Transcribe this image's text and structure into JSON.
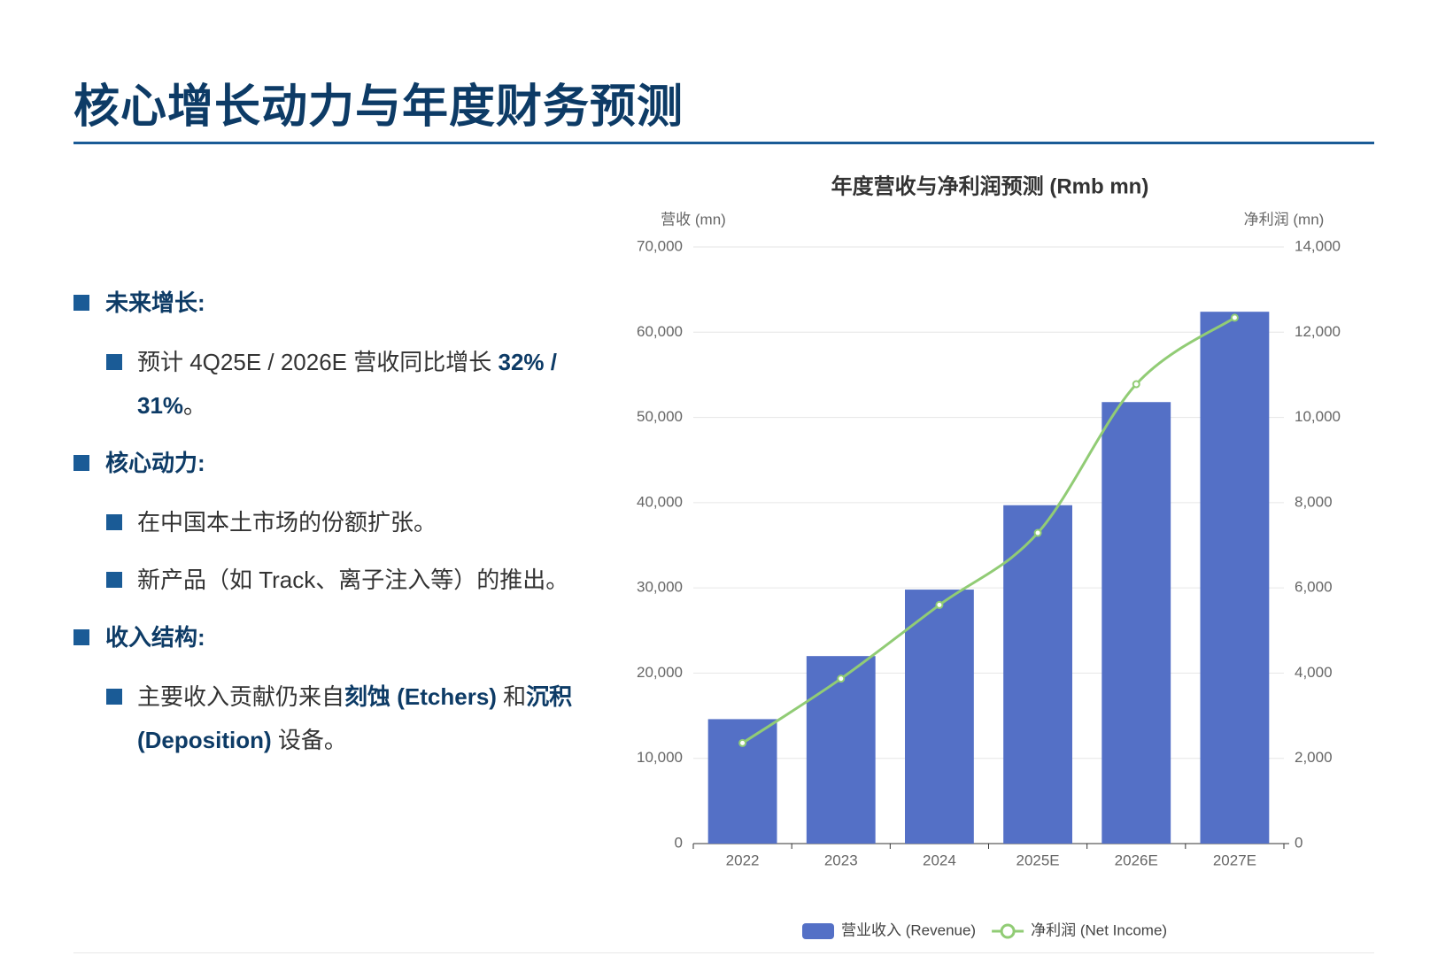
{
  "header": {
    "title": "核心增长动力与年度财务预测"
  },
  "bullets": [
    {
      "level": 1,
      "segments": [
        {
          "text": "未来增长:",
          "bold": true
        }
      ]
    },
    {
      "level": 2,
      "segments": [
        {
          "text": "预计 4Q25E / 2026E 营收同比增长 ",
          "bold": false
        },
        {
          "text": "32% / 31%",
          "bold": true
        },
        {
          "text": "。",
          "bold": false
        }
      ]
    },
    {
      "level": 1,
      "segments": [
        {
          "text": "核心动力:",
          "bold": true
        }
      ]
    },
    {
      "level": 2,
      "segments": [
        {
          "text": "在中国本土市场的份额扩张。",
          "bold": false
        }
      ]
    },
    {
      "level": 2,
      "segments": [
        {
          "text": "新产品（如 Track、离子注入等）的推出。",
          "bold": false
        }
      ]
    },
    {
      "level": 1,
      "segments": [
        {
          "text": "收入结构:",
          "bold": true
        }
      ]
    },
    {
      "level": 2,
      "segments": [
        {
          "text": "主要收入贡献仍来自",
          "bold": false
        },
        {
          "text": "刻蚀 (Etchers)",
          "bold": true
        },
        {
          "text": " 和",
          "bold": false
        },
        {
          "text": "沉积 (Deposition)",
          "bold": true
        },
        {
          "text": " 设备。",
          "bold": false
        }
      ]
    }
  ],
  "chart_data": {
    "type": "combo",
    "title": "年度营收与净利润预测 (Rmb mn)",
    "y_label": "营收 (mn)",
    "y2_label": "净利润 (mn)",
    "categories": [
      "2022",
      "2023",
      "2024",
      "2025E",
      "2026E",
      "2027E"
    ],
    "series": [
      {
        "name": "营业收入 (Revenue)",
        "type": "bar",
        "color": "#5470c6",
        "values": [
          14600,
          22000,
          29800,
          39700,
          51800,
          62400
        ]
      },
      {
        "name": "净利润 (Net Income)",
        "type": "line",
        "axis": "y2",
        "color": "#91cc75",
        "values": [
          2360,
          3870,
          5600,
          7290,
          10780,
          12340
        ]
      }
    ],
    "ylim": [
      0,
      70000
    ],
    "yticks": [
      0,
      {
        "value": 10000,
        "label": "10,000"
      },
      {
        "value": 20000,
        "label": "20,000"
      },
      {
        "value": 30000,
        "label": "30,000"
      },
      {
        "value": 40000,
        "label": "40,000"
      },
      {
        "value": 50000,
        "label": "50,000"
      },
      {
        "value": 60000,
        "label": "60,000"
      },
      {
        "value": 70000,
        "label": "70,000"
      }
    ],
    "y2lim": [
      0,
      14000
    ],
    "y2ticks": [
      0,
      {
        "value": 2000,
        "label": "2,000"
      },
      {
        "value": 4000,
        "label": "4,000"
      },
      {
        "value": 6000,
        "label": "6,000"
      },
      {
        "value": 8000,
        "label": "8,000"
      },
      {
        "value": 10000,
        "label": "10,000"
      },
      {
        "value": 12000,
        "label": "12,000"
      },
      {
        "value": 14000,
        "label": "14,000"
      }
    ],
    "grid": true,
    "legend": "bottom"
  }
}
